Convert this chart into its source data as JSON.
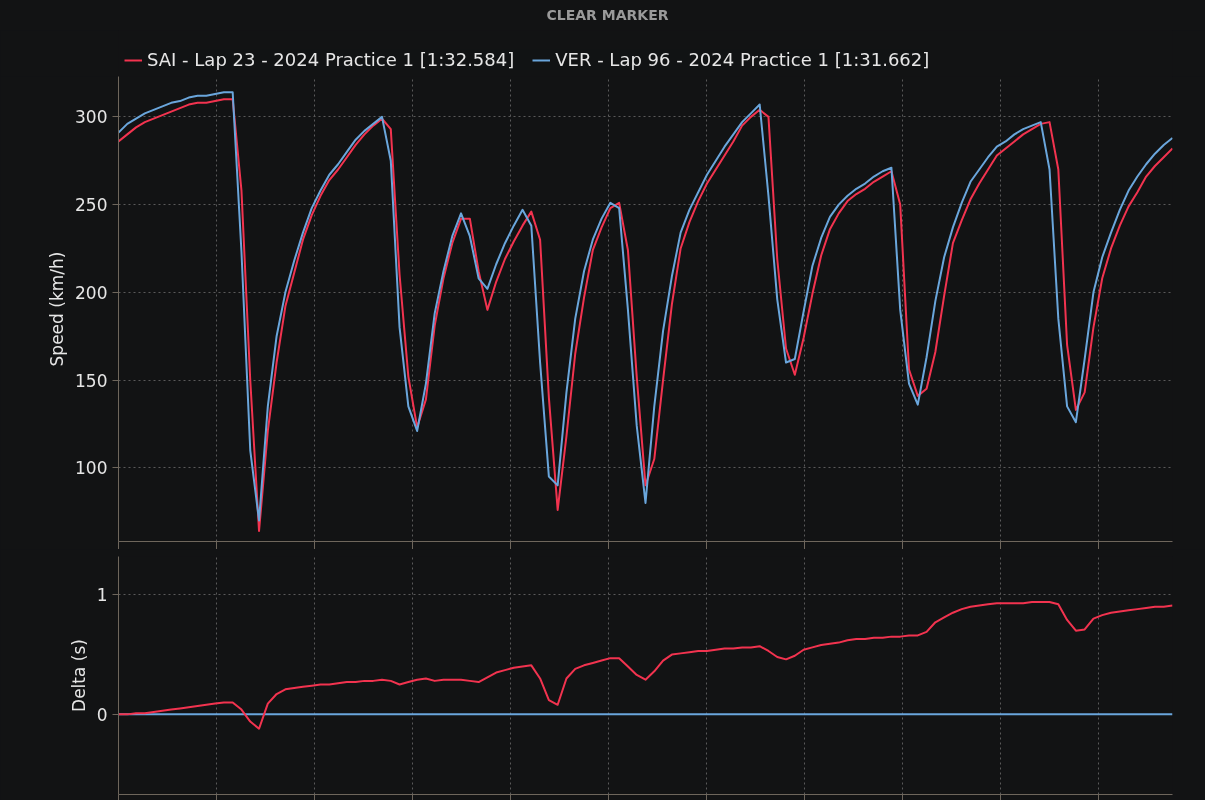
{
  "chart_data": [
    {
      "type": "line",
      "ylabel": "Speed (km/h)",
      "annotations": [
        "CLEAR MARKER"
      ],
      "categories": [
        null,
        null,
        null,
        null,
        null,
        null,
        null,
        null,
        null,
        null,
        null,
        null,
        null,
        null,
        null,
        null,
        null,
        null,
        null,
        null,
        null,
        null,
        null,
        null,
        null,
        null,
        null,
        null,
        null,
        null,
        null,
        null,
        null,
        null,
        null,
        null,
        null,
        null,
        null,
        null,
        null,
        null,
        null,
        null,
        null,
        null,
        null,
        null,
        null,
        null,
        null,
        null,
        null,
        null,
        null,
        null,
        null,
        null,
        null,
        null,
        null,
        null,
        null,
        null,
        null,
        null,
        null,
        null,
        null,
        null,
        null,
        null,
        null,
        null,
        null,
        null,
        null,
        null,
        null,
        null,
        null,
        null,
        null,
        null,
        null,
        null,
        null,
        null,
        null,
        null,
        null,
        null,
        null,
        null,
        null,
        null,
        null,
        null,
        null,
        null,
        null,
        null,
        null,
        null,
        null,
        null,
        null,
        null,
        null,
        null,
        null,
        null,
        null,
        null,
        null,
        null,
        null,
        null,
        null,
        null,
        null
      ],
      "ylim": [
        58,
        323
      ],
      "yticks": [
        100,
        150,
        200,
        250,
        300
      ],
      "grid": true,
      "legend": "top",
      "tick_labels": "y",
      "series": [
        {
          "name": "SAI - Lap 23 - 2024 Practice 1 [1:32.584]",
          "color": "#f2334f",
          "values": [
            286,
            290,
            294,
            297,
            299,
            301,
            303,
            305,
            307,
            308,
            308,
            309,
            310,
            310,
            258,
            150,
            64,
            121,
            160,
            192,
            211,
            230,
            244,
            255,
            264,
            270,
            277,
            284,
            290,
            295,
            299,
            293,
            210,
            152,
            123,
            139,
            181,
            208,
            228,
            242,
            242,
            212,
            190,
            206,
            219,
            229,
            238,
            246,
            230,
            140,
            76,
            118,
            165,
            197,
            224,
            237,
            248,
            251,
            224,
            152,
            90,
            105,
            150,
            193,
            225,
            240,
            252,
            262,
            270,
            278,
            286,
            295,
            300,
            304,
            300,
            219,
            168,
            153,
            174,
            199,
            221,
            236,
            245,
            252,
            256,
            259,
            263,
            266,
            269,
            250,
            156,
            141,
            145,
            166,
            198,
            228,
            241,
            253,
            262,
            270,
            278,
            282,
            286,
            290,
            293,
            296,
            297,
            270,
            170,
            133,
            143,
            180,
            208,
            225,
            238,
            249,
            257,
            266,
            272,
            277,
            282
          ]
        },
        {
          "name": "VER - Lap 96 - 2024 Practice 1 [1:31.662]",
          "color": "#6aa6dc",
          "values": [
            291,
            296,
            299,
            302,
            304,
            306,
            308,
            309,
            311,
            312,
            312,
            313,
            314,
            314,
            223,
            110,
            70,
            135,
            175,
            200,
            218,
            234,
            248,
            258,
            267,
            273,
            280,
            287,
            292,
            296,
            300,
            275,
            180,
            135,
            121,
            148,
            188,
            212,
            232,
            245,
            232,
            208,
            202,
            216,
            228,
            238,
            247,
            238,
            160,
            95,
            90,
            143,
            185,
            212,
            230,
            242,
            251,
            248,
            190,
            124,
            80,
            135,
            178,
            209,
            234,
            247,
            257,
            267,
            275,
            283,
            290,
            297,
            302,
            307,
            255,
            196,
            160,
            162,
            189,
            215,
            231,
            243,
            250,
            255,
            259,
            262,
            266,
            269,
            271,
            190,
            148,
            136,
            163,
            195,
            220,
            237,
            251,
            263,
            270,
            277,
            283,
            286,
            290,
            293,
            295,
            297,
            270,
            185,
            135,
            126,
            162,
            200,
            220,
            234,
            247,
            258,
            266,
            273,
            279,
            284,
            288
          ]
        }
      ]
    },
    {
      "type": "line",
      "ylabel": "Delta (s)",
      "categories": [
        null,
        null,
        null,
        null,
        null,
        null,
        null,
        null,
        null,
        null,
        null,
        null,
        null,
        null,
        null,
        null,
        null,
        null,
        null,
        null,
        null,
        null,
        null,
        null,
        null,
        null,
        null,
        null,
        null,
        null,
        null,
        null,
        null,
        null,
        null,
        null,
        null,
        null,
        null,
        null,
        null,
        null,
        null,
        null,
        null,
        null,
        null,
        null,
        null,
        null,
        null,
        null,
        null,
        null,
        null,
        null,
        null,
        null,
        null,
        null,
        null,
        null,
        null,
        null,
        null,
        null,
        null,
        null,
        null,
        null,
        null,
        null,
        null,
        null,
        null,
        null,
        null,
        null,
        null,
        null,
        null,
        null,
        null,
        null,
        null,
        null,
        null,
        null,
        null,
        null,
        null,
        null,
        null,
        null,
        null,
        null,
        null,
        null,
        null,
        null,
        null,
        null,
        null,
        null,
        null,
        null,
        null,
        null,
        null,
        null,
        null,
        null,
        null,
        null,
        null,
        null,
        null,
        null,
        null,
        null,
        null
      ],
      "ylim": [
        -0.67,
        1.32
      ],
      "yticks": [
        0,
        1
      ],
      "grid": true,
      "tick_labels": "y",
      "series": [
        {
          "color": "#6aa6dc",
          "values": [
            0,
            0,
            0,
            0,
            0,
            0,
            0,
            0,
            0,
            0,
            0,
            0,
            0,
            0,
            0,
            0,
            0,
            0,
            0,
            0,
            0,
            0,
            0,
            0,
            0,
            0,
            0,
            0,
            0,
            0,
            0,
            0,
            0,
            0,
            0,
            0,
            0,
            0,
            0,
            0,
            0,
            0,
            0,
            0,
            0,
            0,
            0,
            0,
            0,
            0,
            0,
            0,
            0,
            0,
            0,
            0,
            0,
            0,
            0,
            0,
            0,
            0,
            0,
            0,
            0,
            0,
            0,
            0,
            0,
            0,
            0,
            0,
            0,
            0,
            0,
            0,
            0,
            0,
            0,
            0,
            0,
            0,
            0,
            0,
            0,
            0,
            0,
            0,
            0,
            0,
            0,
            0,
            0,
            0,
            0,
            0,
            0,
            0,
            0,
            0,
            0,
            0,
            0,
            0,
            0,
            0,
            0,
            0,
            0,
            0,
            0,
            0,
            0,
            0,
            0,
            0,
            0,
            0,
            0,
            0,
            0
          ]
        },
        {
          "color": "#f2334f",
          "values": [
            0.0,
            0.0,
            0.01,
            0.01,
            0.02,
            0.03,
            0.04,
            0.05,
            0.06,
            0.07,
            0.08,
            0.09,
            0.1,
            0.1,
            0.04,
            -0.06,
            -0.12,
            0.09,
            0.17,
            0.21,
            0.22,
            0.23,
            0.24,
            0.25,
            0.25,
            0.26,
            0.27,
            0.27,
            0.28,
            0.28,
            0.29,
            0.28,
            0.25,
            0.27,
            0.29,
            0.3,
            0.28,
            0.29,
            0.29,
            0.29,
            0.28,
            0.27,
            0.31,
            0.35,
            0.37,
            0.39,
            0.4,
            0.41,
            0.3,
            0.12,
            0.08,
            0.3,
            0.38,
            0.41,
            0.43,
            0.45,
            0.47,
            0.47,
            0.4,
            0.33,
            0.29,
            0.36,
            0.45,
            0.5,
            0.51,
            0.52,
            0.53,
            0.53,
            0.54,
            0.55,
            0.55,
            0.56,
            0.56,
            0.57,
            0.53,
            0.48,
            0.46,
            0.49,
            0.54,
            0.56,
            0.58,
            0.59,
            0.6,
            0.62,
            0.63,
            0.63,
            0.64,
            0.64,
            0.65,
            0.65,
            0.66,
            0.66,
            0.69,
            0.77,
            0.81,
            0.85,
            0.88,
            0.9,
            0.91,
            0.92,
            0.93,
            0.93,
            0.93,
            0.93,
            0.94,
            0.94,
            0.94,
            0.92,
            0.79,
            0.7,
            0.71,
            0.8,
            0.83,
            0.85,
            0.86,
            0.87,
            0.88,
            0.89,
            0.9,
            0.9,
            0.91
          ]
        }
      ]
    }
  ]
}
